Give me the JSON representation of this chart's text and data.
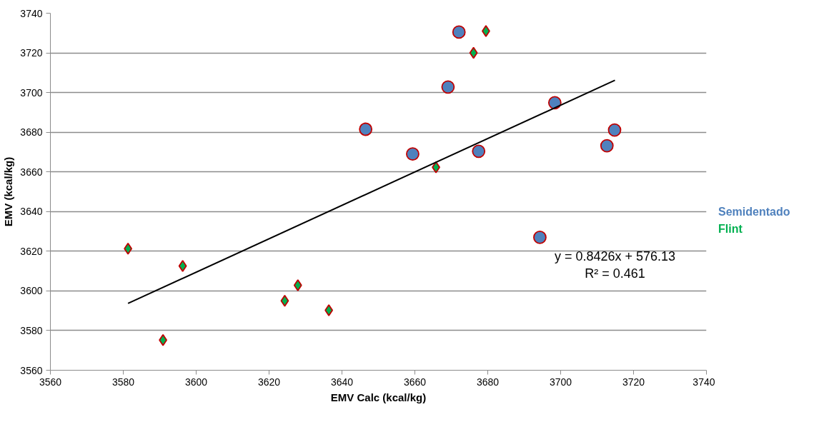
{
  "chart_data": {
    "type": "scatter",
    "xlabel": "EMV Calc (kcal/kg)",
    "ylabel": "EMV (kcal/kg)",
    "xlim": [
      3560,
      3740
    ],
    "xticks": [
      3560,
      3580,
      3600,
      3620,
      3640,
      3660,
      3680,
      3700,
      3720,
      3740
    ],
    "ylim": [
      3560,
      3740
    ],
    "yticks": [
      3560,
      3580,
      3600,
      3620,
      3640,
      3660,
      3680,
      3700,
      3720,
      3740
    ],
    "grid": "y",
    "legend": "right",
    "series": [
      {
        "name": "Semidentado",
        "color": "#4f81bd",
        "marker": "circle",
        "x": [
          3672.1,
          3669.1,
          3698.4,
          3714.8,
          3712.7,
          3659.4,
          3677.5,
          3694.3,
          3646.5
        ],
        "values": [
          3730.5,
          3702.8,
          3694.9,
          3681.1,
          3673.2,
          3669.0,
          3670.4,
          3627.0,
          3681.5
        ]
      },
      {
        "name": "Flint",
        "color": "#00b050",
        "marker": "diamond",
        "x": [
          3679.5,
          3676.1,
          3665.8,
          3581.3,
          3596.3,
          3590.9,
          3627.9,
          3624.3,
          3636.4
        ],
        "values": [
          3731.0,
          3720.0,
          3662.3,
          3621.3,
          3612.6,
          3575.2,
          3602.8,
          3595.0,
          3590.2
        ]
      },
      {
        "type": "line",
        "color": "#000000",
        "marker": "none",
        "line_style": "solid",
        "x": [
          3581.3,
          3714.9
        ],
        "values": [
          3593.7,
          3706.2
        ]
      }
    ],
    "annotations": [
      "y = 0.8426x + 576.13",
      "R² = 0.461"
    ]
  }
}
